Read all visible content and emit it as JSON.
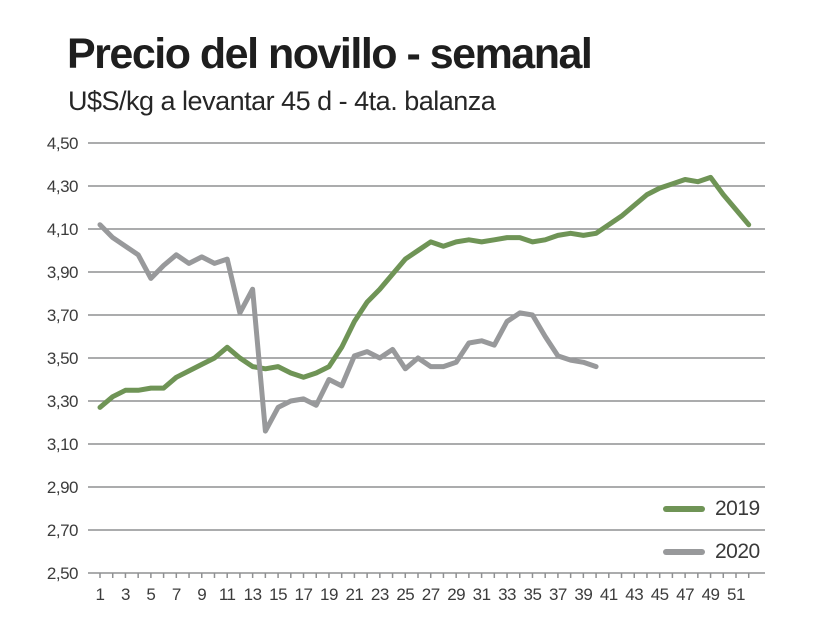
{
  "header": {
    "title": "Precio del novillo - semanal",
    "subtitle": "U$S/kg a levantar 45 d - 4ta. balanza"
  },
  "legend": {
    "items": [
      {
        "label": "2019",
        "color": "#6f9456"
      },
      {
        "label": "2020",
        "color": "#98999b"
      }
    ]
  },
  "colors": {
    "gridline": "#8f9092",
    "tick_text": "#3c3c3c",
    "title_text": "#1e1e1e"
  },
  "chart_data": {
    "type": "line",
    "title": "Precio del novillo - semanal",
    "subtitle": "U$S/kg a levantar 45 d - 4ta. balanza",
    "xlabel": "",
    "ylabel": "U$S/kg",
    "x_unit": "week",
    "x_range": [
      1,
      52
    ],
    "ylim": [
      2.5,
      4.5
    ],
    "grid": true,
    "legend_position": "bottom-right",
    "y_tick_values": [
      4.5,
      4.3,
      4.1,
      3.9,
      3.7,
      3.5,
      3.3,
      3.1,
      2.9,
      2.7,
      2.5
    ],
    "y_tick_labels": [
      "4,50",
      "4,30",
      "4,10",
      "3,90",
      "3,70",
      "3,50",
      "3,30",
      "3,10",
      "2,90",
      "2,70",
      "2,50"
    ],
    "x_label_weeks": [
      1,
      3,
      5,
      7,
      9,
      11,
      13,
      15,
      17,
      19,
      21,
      23,
      25,
      27,
      29,
      31,
      33,
      35,
      37,
      39,
      41,
      43,
      45,
      47,
      49,
      51
    ],
    "series": [
      {
        "name": "2019",
        "color": "#6f9456",
        "start_week": 1,
        "values": [
          3.27,
          3.32,
          3.35,
          3.35,
          3.36,
          3.36,
          3.41,
          3.44,
          3.47,
          3.5,
          3.55,
          3.5,
          3.46,
          3.45,
          3.46,
          3.43,
          3.41,
          3.43,
          3.46,
          3.55,
          3.67,
          3.76,
          3.82,
          3.89,
          3.96,
          4.0,
          4.04,
          4.02,
          4.04,
          4.05,
          4.04,
          4.05,
          4.06,
          4.06,
          4.04,
          4.05,
          4.07,
          4.08,
          4.07,
          4.08,
          4.12,
          4.16,
          4.21,
          4.26,
          4.29,
          4.31,
          4.33,
          4.32,
          4.34,
          4.26,
          4.19,
          4.12
        ]
      },
      {
        "name": "2020",
        "color": "#98999b",
        "start_week": 1,
        "values": [
          4.12,
          4.06,
          4.02,
          3.98,
          3.87,
          3.93,
          3.98,
          3.94,
          3.97,
          3.94,
          3.96,
          3.71,
          3.82,
          3.16,
          3.27,
          3.3,
          3.31,
          3.28,
          3.4,
          3.37,
          3.51,
          3.53,
          3.5,
          3.54,
          3.45,
          3.5,
          3.46,
          3.46,
          3.48,
          3.57,
          3.58,
          3.56,
          3.67,
          3.71,
          3.7,
          3.6,
          3.51,
          3.49,
          3.48,
          3.46
        ]
      }
    ]
  }
}
